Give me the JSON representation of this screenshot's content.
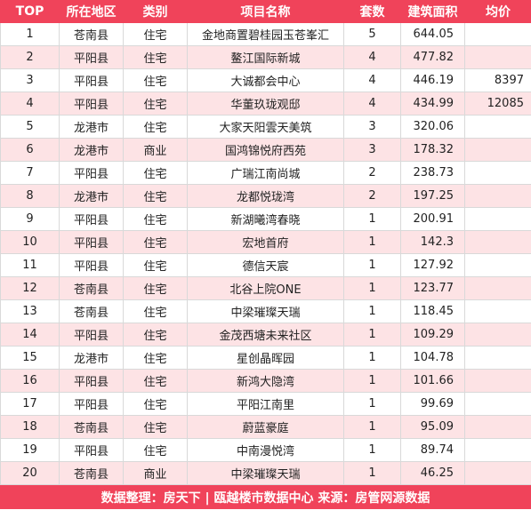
{
  "headers": [
    "TOP",
    "所在地区",
    "类别",
    "项目名称",
    "套数",
    "建筑面积",
    "均价"
  ],
  "rows": [
    {
      "top": "1",
      "region": "苍南县",
      "type": "住宅",
      "name": "金地商置碧桂园玉苍峯汇",
      "units": "5",
      "area": "644.05",
      "price": ""
    },
    {
      "top": "2",
      "region": "平阳县",
      "type": "住宅",
      "name": "鳌江国际新城",
      "units": "4",
      "area": "477.82",
      "price": ""
    },
    {
      "top": "3",
      "region": "平阳县",
      "type": "住宅",
      "name": "大诚都会中心",
      "units": "4",
      "area": "446.19",
      "price": "8397"
    },
    {
      "top": "4",
      "region": "平阳县",
      "type": "住宅",
      "name": "华董玖珑观邸",
      "units": "4",
      "area": "434.99",
      "price": "12085"
    },
    {
      "top": "5",
      "region": "龙港市",
      "type": "住宅",
      "name": "大家天阳雲天美筑",
      "units": "3",
      "area": "320.06",
      "price": ""
    },
    {
      "top": "6",
      "region": "龙港市",
      "type": "商业",
      "name": "国鸿锦悦府西苑",
      "units": "3",
      "area": "178.32",
      "price": ""
    },
    {
      "top": "7",
      "region": "平阳县",
      "type": "住宅",
      "name": "广瑞江南尚城",
      "units": "2",
      "area": "238.73",
      "price": ""
    },
    {
      "top": "8",
      "region": "龙港市",
      "type": "住宅",
      "name": "龙都悦珑湾",
      "units": "2",
      "area": "197.25",
      "price": ""
    },
    {
      "top": "9",
      "region": "平阳县",
      "type": "住宅",
      "name": "新湖曦湾春晓",
      "units": "1",
      "area": "200.91",
      "price": ""
    },
    {
      "top": "10",
      "region": "平阳县",
      "type": "住宅",
      "name": "宏地首府",
      "units": "1",
      "area": "142.3",
      "price": ""
    },
    {
      "top": "11",
      "region": "平阳县",
      "type": "住宅",
      "name": "德信天宸",
      "units": "1",
      "area": "127.92",
      "price": ""
    },
    {
      "top": "12",
      "region": "苍南县",
      "type": "住宅",
      "name": "北谷上院ONE",
      "units": "1",
      "area": "123.77",
      "price": ""
    },
    {
      "top": "13",
      "region": "苍南县",
      "type": "住宅",
      "name": "中梁璀璨天瑞",
      "units": "1",
      "area": "118.45",
      "price": ""
    },
    {
      "top": "14",
      "region": "平阳县",
      "type": "住宅",
      "name": "金茂西塘未来社区",
      "units": "1",
      "area": "109.29",
      "price": ""
    },
    {
      "top": "15",
      "region": "龙港市",
      "type": "住宅",
      "name": "星创晶晖园",
      "units": "1",
      "area": "104.78",
      "price": ""
    },
    {
      "top": "16",
      "region": "平阳县",
      "type": "住宅",
      "name": "新鸿大隐湾",
      "units": "1",
      "area": "101.66",
      "price": ""
    },
    {
      "top": "17",
      "region": "平阳县",
      "type": "住宅",
      "name": "平阳江南里",
      "units": "1",
      "area": "99.69",
      "price": ""
    },
    {
      "top": "18",
      "region": "苍南县",
      "type": "住宅",
      "name": "蔚蓝豪庭",
      "units": "1",
      "area": "95.09",
      "price": ""
    },
    {
      "top": "19",
      "region": "平阳县",
      "type": "住宅",
      "name": "中南漫悦湾",
      "units": "1",
      "area": "89.74",
      "price": ""
    },
    {
      "top": "20",
      "region": "苍南县",
      "type": "商业",
      "name": "中梁璀璨天瑞",
      "units": "1",
      "area": "46.25",
      "price": ""
    }
  ],
  "footer": "数据整理：房天下 | 瓯越楼市数据中心  来源：房管网源数据",
  "colors": {
    "header_bg": "#f0435a",
    "stripe": "#fde3e5"
  }
}
